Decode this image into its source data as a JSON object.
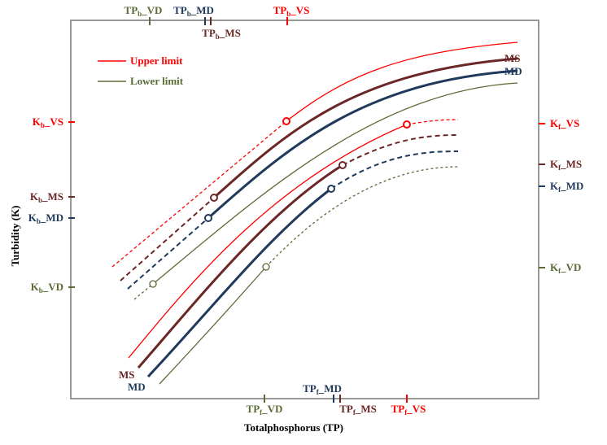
{
  "colors": {
    "vs": "#ff0000",
    "ms": "#6b2626",
    "md": "#1f3a5c",
    "vd": "#5a6b35",
    "axis": "#777777"
  },
  "axes": {
    "x_label": "Totalphosphorus (TP)",
    "y_label": "Turbidity (K)"
  },
  "legend": {
    "upper": "Upper limit",
    "lower": "Lower limit"
  },
  "curve_labels": {
    "ms_top": "MS",
    "md_top": "MD",
    "ms_bottom": "MS",
    "md_bottom": "MD"
  },
  "left_ticks": [
    {
      "base": "K",
      "sub": "b",
      "suffix": "_VS",
      "color": "vs"
    },
    {
      "base": "K",
      "sub": "b",
      "suffix": "_MS",
      "color": "ms"
    },
    {
      "base": "K",
      "sub": "b",
      "suffix": "_MD",
      "color": "md"
    },
    {
      "base": "K",
      "sub": "b",
      "suffix": "_VD",
      "color": "vd"
    }
  ],
  "right_ticks": [
    {
      "base": "K",
      "sub": "f",
      "suffix": "_VS",
      "color": "vs"
    },
    {
      "base": "K",
      "sub": "f",
      "suffix": "_MS",
      "color": "ms"
    },
    {
      "base": "K",
      "sub": "f",
      "suffix": "_MD",
      "color": "md"
    },
    {
      "base": "K",
      "sub": "f",
      "suffix": "_VD",
      "color": "vd"
    }
  ],
  "top_ticks": [
    {
      "base": "TP",
      "sub": "b",
      "suffix": "_VD",
      "color": "vd"
    },
    {
      "base": "TP",
      "sub": "b",
      "suffix": "_MD",
      "color": "md"
    },
    {
      "base": "TP",
      "sub": "b",
      "suffix": "_MS",
      "color": "ms"
    },
    {
      "base": "TP",
      "sub": "b",
      "suffix": "_VS",
      "color": "vs"
    }
  ],
  "bottom_ticks": [
    {
      "base": "TP",
      "sub": "f",
      "suffix": "_VD",
      "color": "vd"
    },
    {
      "base": "TP",
      "sub": "f",
      "suffix": "_MD",
      "color": "md"
    },
    {
      "base": "TP",
      "sub": "f",
      "suffix": "_MS",
      "color": "ms"
    },
    {
      "base": "TP",
      "sub": "f",
      "suffix": "_VS",
      "color": "vs"
    }
  ]
}
